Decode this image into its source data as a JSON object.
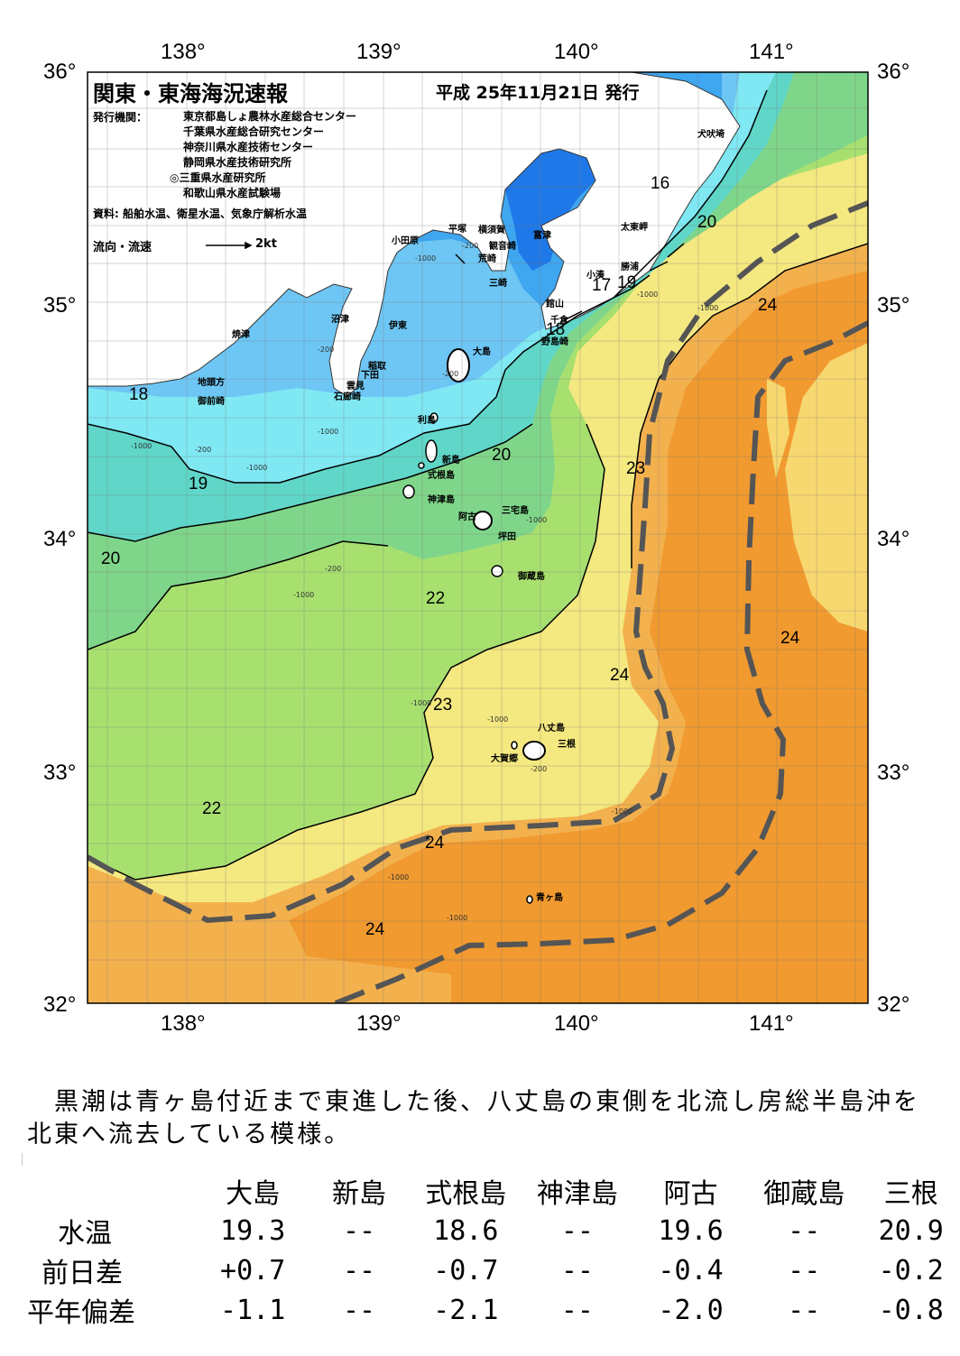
{
  "title": "関東・東海海況速報",
  "date": "平成 25年11月21日 発行",
  "issuer_label": "発行機関：",
  "issuers": [
    "東京都島しょ農林水産総合センター",
    "千葉県水産総合研究センター",
    "神奈川県水産技術センター",
    "静岡県水産技術研究所",
    "◎三重県水産研究所",
    "和歌山県水産試験場"
  ],
  "sources": "資料: 船舶水温、衛星水温、気象庁解析水温",
  "flow_legend": {
    "label": "流向・流速",
    "speed": "2kt"
  },
  "lon_labels": [
    "138°",
    "139°",
    "140°",
    "141°"
  ],
  "lat_labels": [
    "36°",
    "35°",
    "34°",
    "33°",
    "32°"
  ],
  "colors": {
    "t16": "#1f78e8",
    "t17": "#3fa6f0",
    "t18": "#6ec6f4",
    "t19": "#7fe8f2",
    "t20": "#5fd6c8",
    "t21": "#7fd68a",
    "t22": "#a8e070",
    "t23": "#f4e880",
    "t23b": "#f7d870",
    "t24": "#f3b14e",
    "t25": "#f19a30",
    "land": "#ffffff",
    "kuroshio_axis": "#555555"
  },
  "place_names": [
    "犬吠埼",
    "太東岬",
    "勝浦",
    "小湊",
    "館山",
    "千倉",
    "野島崎",
    "富津",
    "横須賀",
    "観音崎",
    "荒崎",
    "三崎",
    "平塚",
    "小田原",
    "沼津",
    "伊東",
    "稲取",
    "下田",
    "雲見",
    "石廊崎",
    "焼津",
    "地頭方",
    "御前崎",
    "大島",
    "利島",
    "新島",
    "式根島",
    "神津島",
    "阿古",
    "三宅島",
    "坪田",
    "御蔵島",
    "八丈島",
    "三根",
    "大賀郷",
    "青ヶ島"
  ],
  "isotherms": [
    "16",
    "20",
    "17",
    "19",
    "18",
    "24",
    "18",
    "20",
    "19",
    "20",
    "23",
    "22",
    "24",
    "24",
    "23",
    "22",
    "24",
    "24"
  ],
  "depth_labels": [
    "-200",
    "-1000",
    "-200",
    "-1000",
    "-200",
    "-1000",
    "-200",
    "-1000",
    "-1000",
    "-200",
    "-1000",
    "-1000",
    "-1000",
    "-200",
    "-1000",
    "-1000",
    "-1000",
    "-1000",
    "-1000"
  ],
  "comment": "黒潮は青ヶ島付近まで東進した後、八丈島の東側を北流し房総半島沖を北東へ流去している模様。",
  "table": {
    "columns": [
      "大島",
      "新島",
      "式根島",
      "神津島",
      "阿古",
      "御蔵島",
      "三根"
    ],
    "rows": [
      {
        "label": "水温",
        "values": [
          "19.3",
          "--",
          "18.6",
          "--",
          "19.6",
          "--",
          "20.9"
        ]
      },
      {
        "label": "前日差",
        "values": [
          "+0.7",
          "--",
          "-0.7",
          "--",
          "-0.4",
          "--",
          "-0.2"
        ]
      },
      {
        "label": "平年偏差",
        "values": [
          "-1.1",
          "--",
          "-2.1",
          "--",
          "-2.0",
          "--",
          "-0.8"
        ]
      }
    ]
  }
}
